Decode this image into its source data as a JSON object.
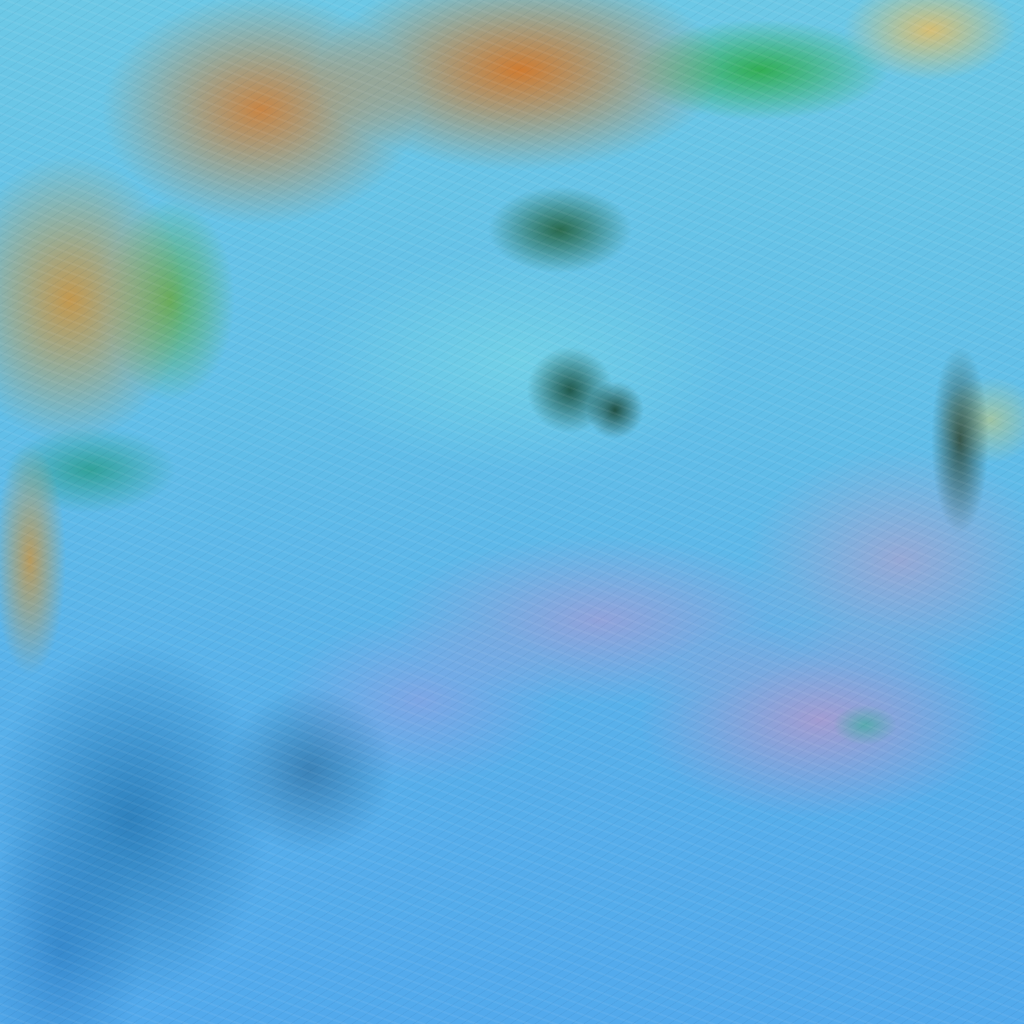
{
  "image": {
    "kind": "false-color satellite imagery",
    "colors": {
      "ocean_cloud": "#5fb8e8",
      "calm_region": "#78d7e6",
      "land_orange": "#d4782a",
      "land_tan": "#c8964a",
      "vegetation_green": "#28aa3c",
      "pink_cloud": "#de8cbe",
      "deep_blue": "#1e6eaa"
    }
  }
}
